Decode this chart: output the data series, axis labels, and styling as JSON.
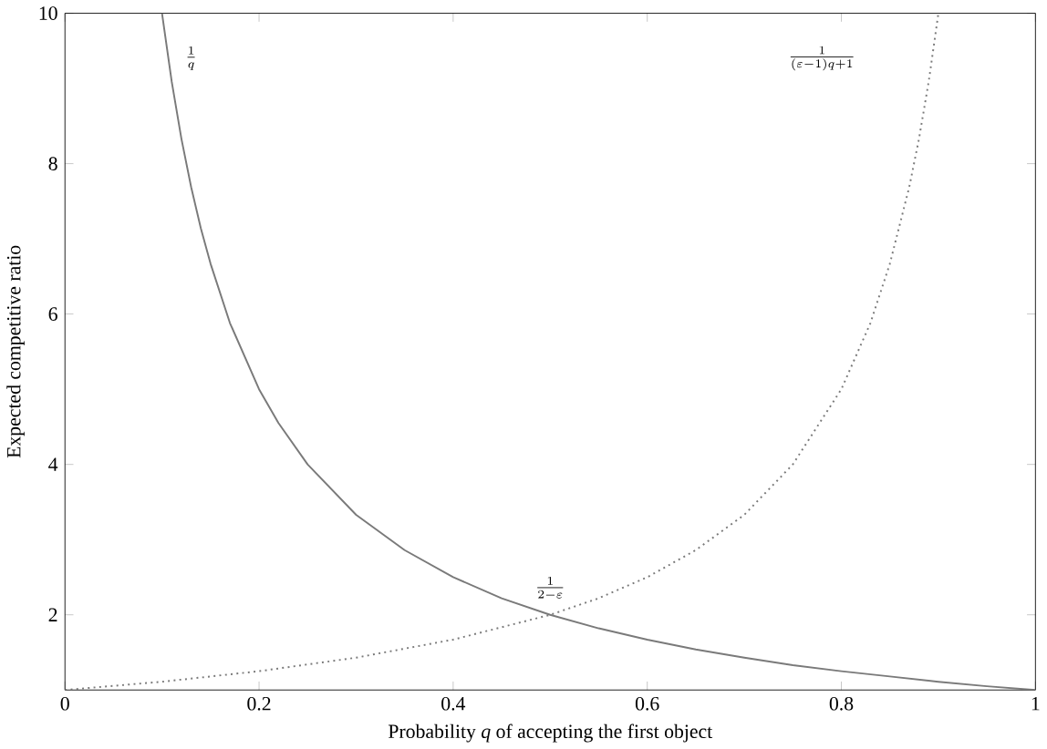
{
  "chart_data": {
    "type": "line",
    "xlabel": "Probability *q* of accepting the first object",
    "ylabel": "Expected competitive ratio",
    "xlim": [
      0,
      1
    ],
    "ylim": [
      1,
      10
    ],
    "xticks": [
      0,
      0.2,
      0.4,
      0.6,
      0.8,
      1
    ],
    "yticks": [
      2,
      4,
      6,
      8,
      10
    ],
    "grid": false,
    "marker": "none",
    "series": [
      {
        "color": "#7a7a7a",
        "line_style": "solid",
        "x": [
          0.1,
          0.11,
          0.12,
          0.13,
          0.14,
          0.15,
          0.17,
          0.2,
          0.22,
          0.25,
          0.3,
          0.35,
          0.4,
          0.45,
          0.5,
          0.55,
          0.6,
          0.65,
          0.7,
          0.75,
          0.8,
          0.85,
          0.9,
          0.95,
          1.0
        ],
        "values": [
          10,
          9.09,
          8.33,
          7.69,
          7.14,
          6.67,
          5.88,
          5,
          4.55,
          4,
          3.33,
          2.86,
          2.5,
          2.22,
          2,
          1.82,
          1.67,
          1.54,
          1.43,
          1.33,
          1.25,
          1.18,
          1.11,
          1.05,
          1
        ]
      },
      {
        "color": "#7a7a7a",
        "line_style": "dotted",
        "x": [
          0,
          0.1,
          0.2,
          0.3,
          0.4,
          0.5,
          0.55,
          0.6,
          0.65,
          0.7,
          0.75,
          0.8,
          0.83,
          0.85,
          0.87,
          0.88,
          0.89,
          0.9
        ],
        "values": [
          1,
          1.11,
          1.25,
          1.43,
          1.67,
          2,
          2.22,
          2.5,
          2.86,
          3.33,
          4,
          5,
          5.88,
          6.67,
          7.69,
          8.33,
          9.09,
          10
        ]
      }
    ],
    "annotations": [
      "\\frac{1}{q}",
      "\\frac{1}{(\\varepsilon-1)q+1}",
      "\\frac{1}{2-\\varepsilon}"
    ]
  }
}
